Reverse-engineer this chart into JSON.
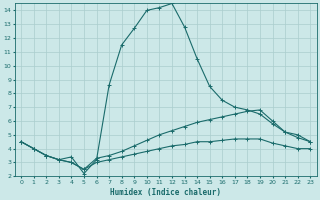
{
  "title": "",
  "xlabel": "Humidex (Indice chaleur)",
  "xlim": [
    -0.5,
    23.5
  ],
  "ylim": [
    2,
    14.5
  ],
  "yticks": [
    2,
    3,
    4,
    5,
    6,
    7,
    8,
    9,
    10,
    11,
    12,
    13,
    14
  ],
  "xticks": [
    0,
    1,
    2,
    3,
    4,
    5,
    6,
    7,
    8,
    9,
    10,
    11,
    12,
    13,
    14,
    15,
    16,
    17,
    18,
    19,
    20,
    21,
    22,
    23
  ],
  "background_color": "#cce8e8",
  "grid_color": "#aacece",
  "line_color": "#1a6b6b",
  "lines": [
    {
      "x": [
        0,
        1,
        2,
        3,
        4,
        5,
        6,
        7,
        8,
        9,
        10,
        11,
        12,
        13,
        14,
        15,
        16,
        17,
        18,
        19,
        20,
        21,
        22,
        23
      ],
      "y": [
        4.5,
        4.0,
        3.5,
        3.2,
        3.4,
        2.2,
        3.2,
        8.6,
        11.5,
        12.7,
        14.0,
        14.2,
        14.5,
        12.8,
        10.5,
        8.5,
        7.5,
        7.0,
        6.8,
        6.5,
        5.8,
        5.2,
        4.8,
        4.5
      ]
    },
    {
      "x": [
        0,
        1,
        2,
        3,
        4,
        5,
        6,
        7,
        8,
        9,
        10,
        11,
        12,
        13,
        14,
        15,
        16,
        17,
        18,
        19,
        20,
        21,
        22,
        23
      ],
      "y": [
        4.5,
        4.0,
        3.5,
        3.2,
        3.0,
        2.5,
        3.3,
        3.5,
        3.8,
        4.2,
        4.6,
        5.0,
        5.3,
        5.6,
        5.9,
        6.1,
        6.3,
        6.5,
        6.7,
        6.8,
        6.0,
        5.2,
        5.0,
        4.5
      ]
    },
    {
      "x": [
        0,
        1,
        2,
        3,
        4,
        5,
        6,
        7,
        8,
        9,
        10,
        11,
        12,
        13,
        14,
        15,
        16,
        17,
        18,
        19,
        20,
        21,
        22,
        23
      ],
      "y": [
        4.5,
        4.0,
        3.5,
        3.2,
        3.0,
        2.5,
        3.0,
        3.2,
        3.4,
        3.6,
        3.8,
        4.0,
        4.2,
        4.3,
        4.5,
        4.5,
        4.6,
        4.7,
        4.7,
        4.7,
        4.4,
        4.2,
        4.0,
        4.0
      ]
    }
  ]
}
